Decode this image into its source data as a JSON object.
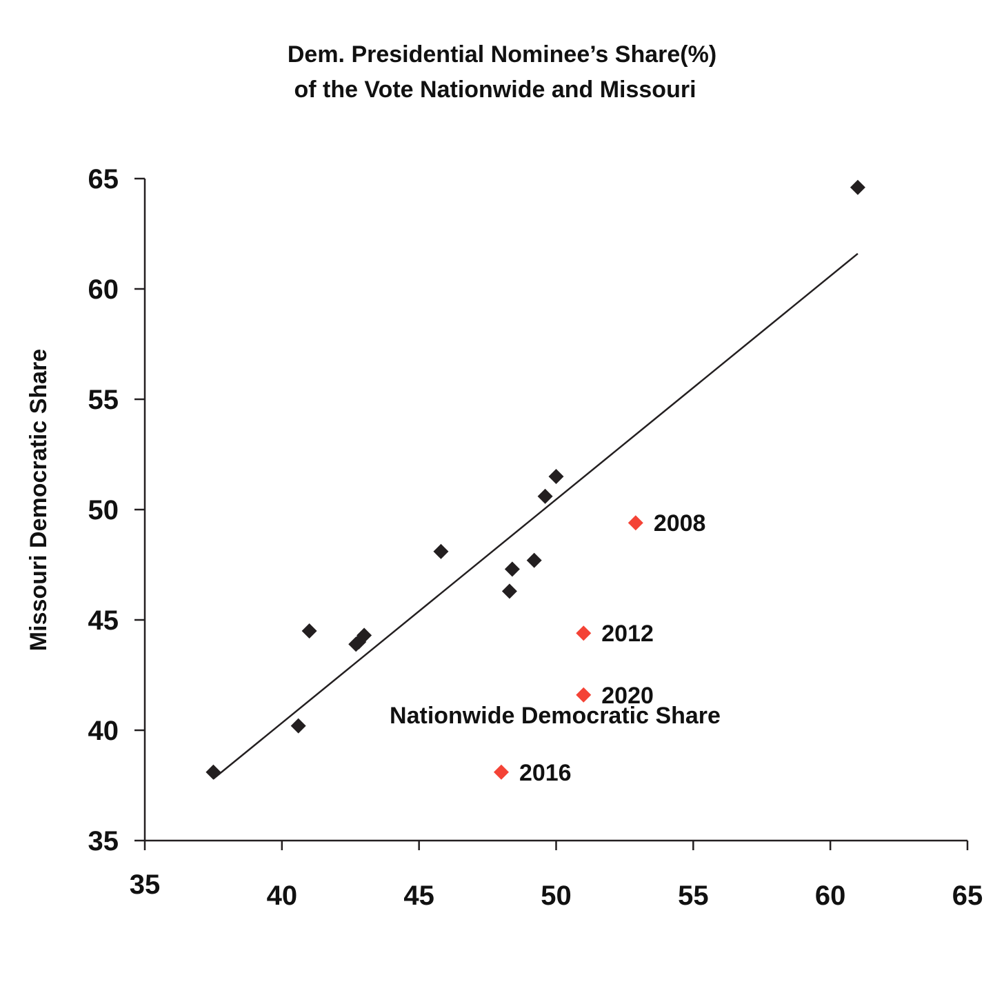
{
  "chart_data": {
    "type": "scatter",
    "title_lines": [
      "Dem. Presidential Nominee’s Share(%)",
      "of the Vote Nationwide and Missouri"
    ],
    "xlabel": "Nationwide Democratic Share",
    "ylabel": "Missouri Democratic Share",
    "xlim": [
      35,
      65
    ],
    "ylim": [
      35,
      65
    ],
    "xticks": [
      "35",
      "40",
      "45",
      "50",
      "55",
      "60",
      "65"
    ],
    "yticks": [
      "35",
      "40",
      "45",
      "50",
      "55",
      "60",
      "65"
    ],
    "grid": false,
    "legend": "none",
    "colors": {
      "base": "#231f20",
      "highlight": "#f44336",
      "line": "#231f20"
    },
    "series": [
      {
        "points": [
          {
            "x": 37.5,
            "y": 38.1
          },
          {
            "x": 40.6,
            "y": 40.2
          },
          {
            "x": 41.0,
            "y": 44.5
          },
          {
            "x": 42.7,
            "y": 43.9
          },
          {
            "x": 42.8,
            "y": 44.0
          },
          {
            "x": 43.0,
            "y": 44.3
          },
          {
            "x": 45.8,
            "y": 48.1
          },
          {
            "x": 48.3,
            "y": 46.3
          },
          {
            "x": 48.4,
            "y": 47.3
          },
          {
            "x": 49.2,
            "y": 47.7
          },
          {
            "x": 49.6,
            "y": 50.6
          },
          {
            "x": 50.0,
            "y": 51.5
          },
          {
            "x": 61.0,
            "y": 64.6
          }
        ]
      },
      {
        "points": [
          {
            "x": 52.9,
            "y": 49.4,
            "label": "2008"
          },
          {
            "x": 51.0,
            "y": 44.4,
            "label": "2012"
          },
          {
            "x": 48.0,
            "y": 38.1,
            "label": "2016"
          },
          {
            "x": 51.0,
            "y": 41.6,
            "label": "2020"
          }
        ]
      }
    ],
    "trendline": {
      "x": [
        37.5,
        61.0
      ],
      "y": [
        37.8,
        61.6
      ]
    }
  }
}
